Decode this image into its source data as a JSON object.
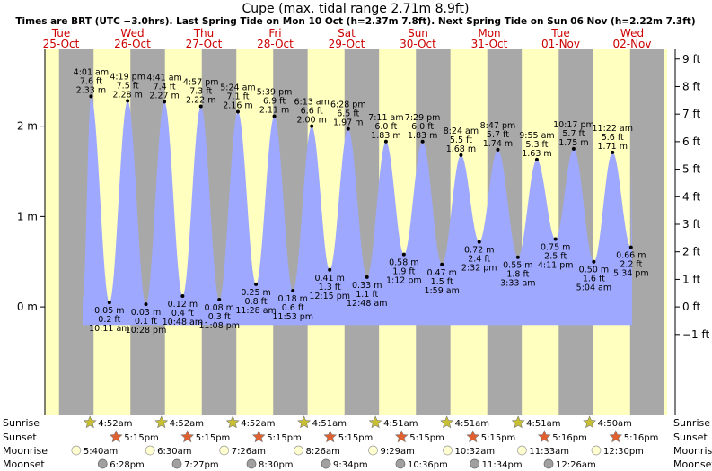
{
  "header": {
    "title": "Cupe (max. tidal range 2.71m 8.9ft)",
    "subtitle": "Times are BRT (UTC −3.0hrs). Last Spring Tide on Mon 10 Oct (h=2.37m 7.8ft). Next Spring Tide on Sun 06 Nov (h=2.22m 7.3ft)"
  },
  "colors": {
    "day": "#ffffc0",
    "night": "#a8a8a8",
    "tide": "#9ea8ff",
    "header_red": "#cc0000",
    "sun": "#c8c030",
    "sunset": "#e06030",
    "moon": "#ffffd0",
    "moonset": "#a0a0a0"
  },
  "chart_data": {
    "type": "area",
    "title": "Cupe (max. tidal range 2.71m 8.9ft)",
    "ylim": [
      -1.2,
      2.85
    ],
    "y_left_ticks": [
      {
        "v": 0,
        "label": "0 m"
      },
      {
        "v": 1,
        "label": "1 m"
      },
      {
        "v": 2,
        "label": "2 m"
      }
    ],
    "y_right_ticks": [
      {
        "ft": -1,
        "label": "−1 ft"
      },
      {
        "ft": 0,
        "label": "0 ft"
      },
      {
        "ft": 1,
        "label": "1 ft"
      },
      {
        "ft": 2,
        "label": "2 ft"
      },
      {
        "ft": 3,
        "label": "3 ft"
      },
      {
        "ft": 4,
        "label": "4 ft"
      },
      {
        "ft": 5,
        "label": "5 ft"
      },
      {
        "ft": 6,
        "label": "6 ft"
      },
      {
        "ft": 7,
        "label": "7 ft"
      },
      {
        "ft": 8,
        "label": "8 ft"
      },
      {
        "ft": 9,
        "label": "9 ft"
      }
    ],
    "days": [
      {
        "dow": "Tue",
        "date": "25-Oct"
      },
      {
        "dow": "Wed",
        "date": "26-Oct"
      },
      {
        "dow": "Thu",
        "date": "27-Oct"
      },
      {
        "dow": "Fri",
        "date": "28-Oct"
      },
      {
        "dow": "Sat",
        "date": "29-Oct"
      },
      {
        "dow": "Sun",
        "date": "30-Oct"
      },
      {
        "dow": "Mon",
        "date": "31-Oct"
      },
      {
        "dow": "Tue",
        "date": "01-Nov"
      },
      {
        "dow": "Wed",
        "date": "02-Nov"
      }
    ],
    "day_periods": [
      {
        "rise": "25 04:52",
        "set": "25 17:15"
      },
      {
        "rise": "26 04:52",
        "set": "26 17:15"
      },
      {
        "rise": "27 04:52",
        "set": "27 17:15"
      },
      {
        "rise": "28 04:52",
        "set": "28 17:15"
      },
      {
        "rise": "29 04:51",
        "set": "29 17:15"
      },
      {
        "rise": "30 04:51",
        "set": "30 17:15"
      },
      {
        "rise": "31 04:51",
        "set": "31 17:15"
      },
      {
        "rise": "01 04:51",
        "set": "01 17:16"
      },
      {
        "rise": "02 04:50",
        "set": "02 17:16"
      }
    ],
    "tides": [
      {
        "kind": "high",
        "t": "26 04:01",
        "time": "4:01 am",
        "ft": "7.6 ft",
        "m": 2.33
      },
      {
        "kind": "low",
        "t": "26 10:11",
        "time": "10:11 am",
        "ft": "0.2 ft",
        "m": 0.05
      },
      {
        "kind": "high",
        "t": "26 16:19",
        "time": "4:19 pm",
        "ft": "7.5 ft",
        "m": 2.28
      },
      {
        "kind": "low",
        "t": "26 22:28",
        "time": "10:28 pm",
        "ft": "0.1 ft",
        "m": 0.03
      },
      {
        "kind": "high",
        "t": "27 04:41",
        "time": "4:41 am",
        "ft": "7.4 ft",
        "m": 2.27
      },
      {
        "kind": "low",
        "t": "27 10:48",
        "time": "10:48 am",
        "ft": "0.4 ft",
        "m": 0.12
      },
      {
        "kind": "high",
        "t": "27 16:57",
        "time": "4:57 pm",
        "ft": "7.3 ft",
        "m": 2.22
      },
      {
        "kind": "low",
        "t": "27 23:08",
        "time": "11:08 pm",
        "ft": "0.3 ft",
        "m": 0.08
      },
      {
        "kind": "high",
        "t": "28 05:24",
        "time": "5:24 am",
        "ft": "7.1 ft",
        "m": 2.16
      },
      {
        "kind": "low",
        "t": "28 11:28",
        "time": "11:28 am",
        "ft": "0.8 ft",
        "m": 0.25
      },
      {
        "kind": "high",
        "t": "28 17:39",
        "time": "5:39 pm",
        "ft": "6.9 ft",
        "m": 2.11
      },
      {
        "kind": "low",
        "t": "28 23:53",
        "time": "11:53 pm",
        "ft": "0.6 ft",
        "m": 0.18
      },
      {
        "kind": "high",
        "t": "29 06:13",
        "time": "6:13 am",
        "ft": "6.6 ft",
        "m": 2.0
      },
      {
        "kind": "low",
        "t": "29 12:15",
        "time": "12:15 pm",
        "ft": "1.3 ft",
        "m": 0.41
      },
      {
        "kind": "high",
        "t": "29 18:28",
        "time": "6:28 pm",
        "ft": "6.5 ft",
        "m": 1.97
      },
      {
        "kind": "low",
        "t": "30 00:48",
        "time": "12:48 am",
        "ft": "1.1 ft",
        "m": 0.33
      },
      {
        "kind": "high",
        "t": "30 07:11",
        "time": "7:11 am",
        "ft": "6.0 ft",
        "m": 1.83
      },
      {
        "kind": "low",
        "t": "30 13:12",
        "time": "1:12 pm",
        "ft": "1.9 ft",
        "m": 0.58
      },
      {
        "kind": "high",
        "t": "30 19:29",
        "time": "7:29 pm",
        "ft": "6.0 ft",
        "m": 1.83
      },
      {
        "kind": "low",
        "t": "31 01:59",
        "time": "1:59 am",
        "ft": "1.5 ft",
        "m": 0.47
      },
      {
        "kind": "high",
        "t": "31 08:24",
        "time": "8:24 am",
        "ft": "5.5 ft",
        "m": 1.68
      },
      {
        "kind": "low",
        "t": "31 14:32",
        "time": "2:32 pm",
        "ft": "2.4 ft",
        "m": 0.72
      },
      {
        "kind": "high",
        "t": "31 20:47",
        "time": "8:47 pm",
        "ft": "5.7 ft",
        "m": 1.74
      },
      {
        "kind": "low",
        "t": "01 03:33",
        "time": "3:33 am",
        "ft": "1.8 ft",
        "m": 0.55
      },
      {
        "kind": "high",
        "t": "01 09:55",
        "time": "9:55 am",
        "ft": "5.3 ft",
        "m": 1.63
      },
      {
        "kind": "low",
        "t": "01 16:11",
        "time": "4:11 pm",
        "ft": "2.5 ft",
        "m": 0.75
      },
      {
        "kind": "high",
        "t": "01 22:17",
        "time": "10:17 pm",
        "ft": "5.7 ft",
        "m": 1.75
      },
      {
        "kind": "low",
        "t": "02 05:04",
        "time": "5:04 am",
        "ft": "1.6 ft",
        "m": 0.5
      },
      {
        "kind": "high",
        "t": "02 11:22",
        "time": "11:22 am",
        "ft": "5.6 ft",
        "m": 1.71
      },
      {
        "kind": "low",
        "t": "02 17:34",
        "time": "5:34 pm",
        "ft": "2.2 ft",
        "m": 0.66
      }
    ],
    "astro_rows": [
      {
        "label": "Sunrise",
        "kind": "sunrise"
      },
      {
        "label": "Sunset",
        "kind": "sunset"
      },
      {
        "label": "Moonrise",
        "kind": "moonrise"
      },
      {
        "label": "Moonset",
        "kind": "moonset"
      }
    ],
    "sunrise": [
      {
        "t": "26 04:52",
        "label": "4:52am"
      },
      {
        "t": "27 04:52",
        "label": "4:52am"
      },
      {
        "t": "28 04:52",
        "label": "4:52am"
      },
      {
        "t": "29 04:51",
        "label": "4:51am"
      },
      {
        "t": "30 04:51",
        "label": "4:51am"
      },
      {
        "t": "31 04:51",
        "label": "4:51am"
      },
      {
        "t": "01 04:51",
        "label": "4:51am"
      },
      {
        "t": "02 04:50",
        "label": "4:50am"
      }
    ],
    "sunset": [
      {
        "t": "26 17:15",
        "label": "5:15pm"
      },
      {
        "t": "27 17:15",
        "label": "5:15pm"
      },
      {
        "t": "28 17:15",
        "label": "5:15pm"
      },
      {
        "t": "29 17:15",
        "label": "5:15pm"
      },
      {
        "t": "30 17:15",
        "label": "5:15pm"
      },
      {
        "t": "31 17:15",
        "label": "5:15pm"
      },
      {
        "t": "01 17:16",
        "label": "5:16pm"
      },
      {
        "t": "02 17:16",
        "label": "5:16pm"
      }
    ],
    "moonrise": [
      {
        "t": "26 05:40",
        "label": "5:40am"
      },
      {
        "t": "27 06:30",
        "label": "6:30am"
      },
      {
        "t": "28 07:26",
        "label": "7:26am"
      },
      {
        "t": "29 08:26",
        "label": "8:26am"
      },
      {
        "t": "30 09:29",
        "label": "9:29am"
      },
      {
        "t": "31 10:32",
        "label": "10:32am"
      },
      {
        "t": "01 11:33",
        "label": "11:33am"
      },
      {
        "t": "02 12:30",
        "label": "12:30pm"
      }
    ],
    "moonset": [
      {
        "t": "26 18:28",
        "label": "6:28pm"
      },
      {
        "t": "27 19:27",
        "label": "7:27pm"
      },
      {
        "t": "28 20:30",
        "label": "8:30pm"
      },
      {
        "t": "29 21:34",
        "label": "9:34pm"
      },
      {
        "t": "30 22:36",
        "label": "10:36pm"
      },
      {
        "t": "31 23:34",
        "label": "11:34pm"
      },
      {
        "t": "02 00:26",
        "label": "12:26am"
      }
    ]
  }
}
